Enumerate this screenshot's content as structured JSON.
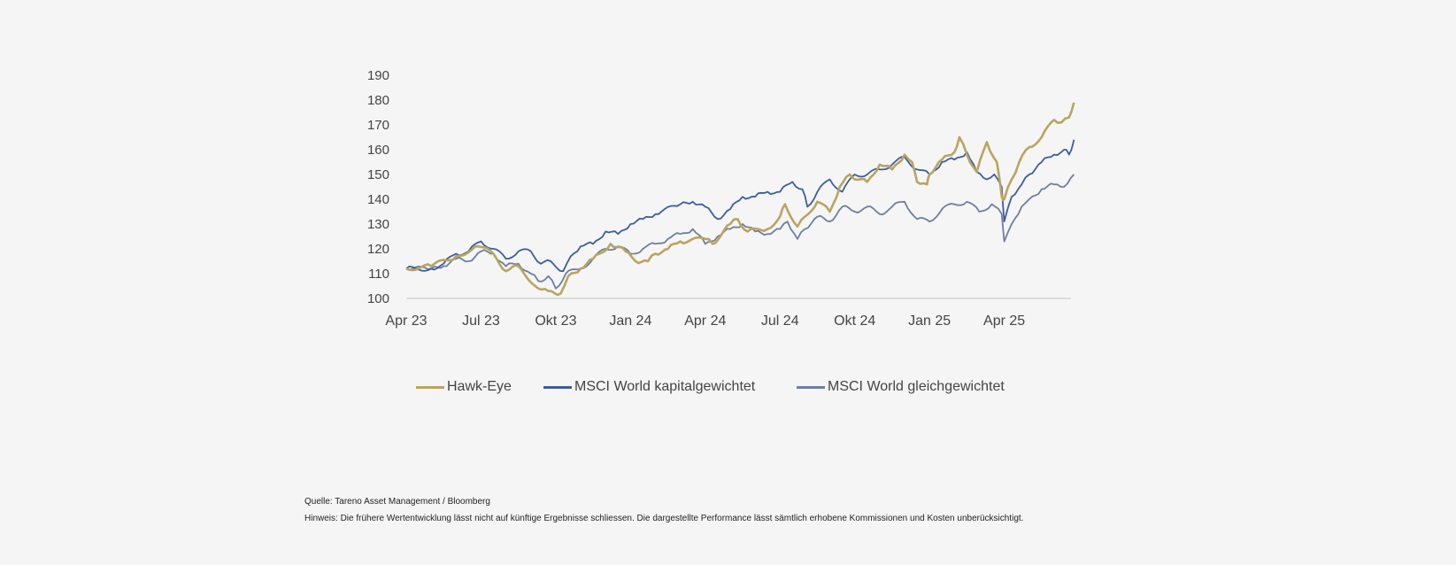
{
  "chart_data": {
    "type": "line",
    "title": "",
    "xlabel": "",
    "ylabel": "",
    "ylim": [
      100,
      190
    ],
    "yticks": [
      100,
      110,
      120,
      130,
      140,
      150,
      160,
      170,
      180,
      190
    ],
    "x_unit": "months since Apr 23",
    "xticks": [
      {
        "at": 0,
        "label": "Apr 23"
      },
      {
        "at": 3,
        "label": "Jul 23"
      },
      {
        "at": 6,
        "label": "Okt 23"
      },
      {
        "at": 9,
        "label": "Jan 24"
      },
      {
        "at": 12,
        "label": "Apr 24"
      },
      {
        "at": 15,
        "label": "Jul 24"
      },
      {
        "at": 18,
        "label": "Okt 24"
      },
      {
        "at": 21,
        "label": "Jan 25"
      },
      {
        "at": 24,
        "label": "Apr 25"
      }
    ],
    "xlim": [
      0,
      26.8
    ],
    "grid": false,
    "legend_position": "bottom",
    "series": [
      {
        "name": "Hawk-Eye",
        "color": "#b9a461",
        "x": [
          0,
          1,
          2,
          2.9,
          3.5,
          4,
          4.5,
          5.3,
          5.7,
          6.2,
          6.5,
          7,
          7.5,
          8.2,
          8.8,
          9.2,
          9.7,
          10,
          10.5,
          11,
          12,
          12.3,
          13,
          13.3,
          13.7,
          14.5,
          15,
          15.2,
          15.7,
          16,
          16.5,
          17,
          17.4,
          17.8,
          18,
          18.5,
          19,
          19.5,
          20,
          20.3,
          20.5,
          20.9,
          21,
          21.5,
          22,
          22.2,
          22.5,
          22.9,
          23.3,
          23.7,
          23.9,
          24,
          24.3,
          24.6,
          25,
          25.5,
          26,
          26.3,
          26.6,
          26.8
        ],
        "y": [
          112,
          113,
          117,
          121,
          118,
          111,
          113,
          104,
          103,
          102,
          109,
          112,
          116,
          122,
          119,
          115,
          115,
          118,
          120,
          123,
          124,
          122,
          130,
          132,
          127,
          128,
          133,
          138,
          129,
          133,
          139,
          135,
          145,
          150,
          148,
          147,
          154,
          152,
          158,
          155,
          147,
          146,
          150,
          156,
          159,
          165,
          158,
          151,
          163,
          155,
          141,
          140,
          148,
          155,
          161,
          165,
          172,
          171,
          173,
          179
        ]
      },
      {
        "name": "MSCI World kapitalgewichtet",
        "color": "#3d5d9e",
        "x": [
          0,
          1,
          1.5,
          2,
          2.5,
          3,
          3.5,
          4,
          4.5,
          5,
          5.4,
          5.8,
          6.3,
          6.6,
          7,
          7.5,
          8,
          8.5,
          9,
          9.5,
          10,
          11,
          11.5,
          12,
          12.5,
          13,
          13.5,
          14,
          14.5,
          15,
          15.5,
          15.9,
          16.1,
          16.5,
          17,
          17.5,
          18,
          18.5,
          19,
          19.5,
          20,
          20.5,
          21,
          21.5,
          22,
          22.5,
          22.9,
          23.3,
          23.6,
          23.9,
          24,
          24.3,
          24.7,
          25,
          25.5,
          26,
          26.4,
          26.6,
          26.8
        ],
        "y": [
          112,
          112,
          114,
          118,
          119,
          123,
          120,
          116,
          119,
          119,
          114,
          115,
          111,
          117,
          121,
          122,
          127,
          126,
          130,
          132,
          134,
          138,
          139,
          137,
          132,
          136,
          141,
          141,
          143,
          143,
          147,
          144,
          137,
          143,
          148,
          143,
          150,
          150,
          152,
          154,
          157,
          152,
          150,
          155,
          156,
          159,
          151,
          148,
          150,
          145,
          131,
          141,
          146,
          150,
          155,
          158,
          160,
          158,
          164
        ]
      },
      {
        "name": "MSCI World gleichgewichtet",
        "color": "#6e7ea2",
        "x": [
          0,
          1,
          1.5,
          2,
          2.5,
          3,
          3.5,
          4,
          4.5,
          5,
          5.3,
          5.7,
          6,
          6.4,
          7,
          7.5,
          8,
          8.5,
          9,
          9.5,
          10,
          10.5,
          11,
          11.5,
          12,
          12.5,
          13,
          13.5,
          14,
          14.5,
          15,
          15.3,
          15.7,
          16,
          16.5,
          17,
          17.5,
          18,
          18.5,
          19,
          19.5,
          20,
          20.5,
          21,
          21.5,
          22,
          22.5,
          23,
          23.5,
          23.9,
          24,
          24.3,
          24.7,
          25,
          25.5,
          26,
          26.4,
          26.8
        ],
        "y": [
          112,
          112,
          113,
          116,
          115,
          119,
          118,
          113,
          114,
          110,
          107,
          109,
          104,
          110,
          112,
          116,
          120,
          121,
          118,
          120,
          122,
          124,
          126,
          128,
          122,
          125,
          128,
          130,
          127,
          126,
          128,
          131,
          124,
          128,
          133,
          131,
          137,
          135,
          137,
          134,
          137,
          139,
          132,
          131,
          136,
          138,
          139,
          135,
          138,
          134,
          123,
          130,
          137,
          140,
          144,
          146,
          145,
          150
        ]
      }
    ]
  },
  "footer": {
    "source": "Quelle: Tareno Asset Management / Bloomberg",
    "note": "Hinweis: Die frühere Wertentwicklung lässt nicht auf künftige Ergebnisse schliessen. Die dargestellte Performance lässt sämtlich erhobene Kommissionen und Kosten unberücksichtigt."
  }
}
